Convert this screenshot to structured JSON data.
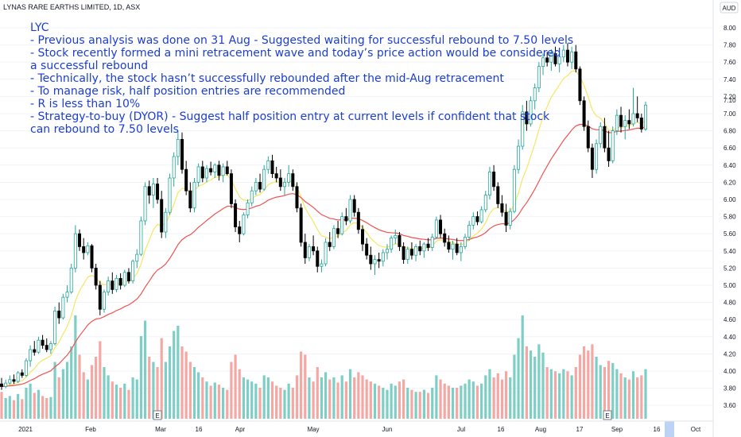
{
  "header": {
    "symbol_title": "LYNAS RARE EARTHS LIMITED, 1D, ASX",
    "currency": "AUD"
  },
  "annotation": [
    "LYC",
    "- Previous analysis was done on 31 Aug - Suggested waiting for successful rebound to 7.50 levels",
    "- Stock recently formed a mini retracement wave and today’s price action would be considered",
    "a successful rebound",
    "- Technically, the stock hasn’t successfully rebounded after the mid-Aug retracement",
    "- To manage risk, half position entries are recommended",
    "- R is less than 10%",
    "- Strategy-to-buy (DYOR) - Suggest half position entry at current levels if confident that stock",
    "can rebound to 7.50 levels"
  ],
  "chart_data": {
    "type": "candlestick",
    "title": "LYNAS RARE EARTHS LIMITED, 1D, ASX",
    "ylabel": "AUD",
    "ylim": [
      3.4,
      8.1
    ],
    "y_ticks": [
      "3.60",
      "3.80",
      "4.00",
      "4.20",
      "4.40",
      "4.60",
      "4.80",
      "5.00",
      "5.20",
      "5.40",
      "5.60",
      "5.80",
      "6.00",
      "6.20",
      "6.40",
      "6.60",
      "6.80",
      "7.00",
      "7.20",
      "7.40",
      "7.60",
      "7.80",
      "8.00"
    ],
    "x_tick_labels": [
      "2021",
      "Feb",
      "Mar",
      "16",
      "Apr",
      "May",
      "Jun",
      "Jul",
      "16",
      "Aug",
      "17",
      "Sep",
      "16",
      "Oct"
    ],
    "current_price_label": "7.10",
    "event_markers": [
      "E",
      "E"
    ],
    "colors": {
      "up": "#26a69a",
      "down": "#000000",
      "up_volume": "#7dcfc6",
      "down_volume": "#f4a7a3",
      "ma_fast": "#f5e663",
      "ma_slow": "#ef5350",
      "annotation_text": "#1a3dd6",
      "future_highlight": "#bcd3f5"
    },
    "candles": [
      {
        "o": 3.85,
        "h": 3.92,
        "l": 3.78,
        "c": 3.82,
        "v": 0.26
      },
      {
        "o": 3.82,
        "h": 3.9,
        "l": 3.8,
        "c": 3.86,
        "v": 0.2
      },
      {
        "o": 3.86,
        "h": 3.95,
        "l": 3.84,
        "c": 3.9,
        "v": 0.22
      },
      {
        "o": 3.9,
        "h": 3.96,
        "l": 3.85,
        "c": 3.88,
        "v": 0.18
      },
      {
        "o": 3.88,
        "h": 4.0,
        "l": 3.86,
        "c": 3.98,
        "v": 0.24
      },
      {
        "o": 3.98,
        "h": 4.02,
        "l": 3.92,
        "c": 3.95,
        "v": 0.19
      },
      {
        "o": 3.95,
        "h": 4.15,
        "l": 3.93,
        "c": 4.12,
        "v": 0.3
      },
      {
        "o": 4.12,
        "h": 4.3,
        "l": 4.05,
        "c": 4.25,
        "v": 0.34
      },
      {
        "o": 4.25,
        "h": 4.35,
        "l": 4.18,
        "c": 4.22,
        "v": 0.25
      },
      {
        "o": 4.22,
        "h": 4.4,
        "l": 4.2,
        "c": 4.36,
        "v": 0.28
      },
      {
        "o": 4.36,
        "h": 4.42,
        "l": 4.26,
        "c": 4.3,
        "v": 0.22
      },
      {
        "o": 4.3,
        "h": 4.38,
        "l": 4.22,
        "c": 4.25,
        "v": 0.2
      },
      {
        "o": 4.25,
        "h": 4.35,
        "l": 4.2,
        "c": 4.32,
        "v": 0.21
      },
      {
        "o": 4.32,
        "h": 4.75,
        "l": 4.3,
        "c": 4.7,
        "v": 0.55
      },
      {
        "o": 4.7,
        "h": 4.8,
        "l": 4.55,
        "c": 4.62,
        "v": 0.4
      },
      {
        "o": 4.62,
        "h": 4.9,
        "l": 4.6,
        "c": 4.86,
        "v": 0.48
      },
      {
        "o": 4.86,
        "h": 5.0,
        "l": 4.8,
        "c": 4.92,
        "v": 0.55
      },
      {
        "o": 4.92,
        "h": 5.25,
        "l": 4.9,
        "c": 5.2,
        "v": 0.7
      },
      {
        "o": 5.2,
        "h": 5.7,
        "l": 5.15,
        "c": 5.6,
        "v": 1.0
      },
      {
        "o": 5.6,
        "h": 5.65,
        "l": 5.4,
        "c": 5.45,
        "v": 0.62
      },
      {
        "o": 5.45,
        "h": 5.55,
        "l": 5.3,
        "c": 5.38,
        "v": 0.45
      },
      {
        "o": 5.38,
        "h": 5.5,
        "l": 5.35,
        "c": 5.46,
        "v": 0.38
      },
      {
        "o": 5.46,
        "h": 5.48,
        "l": 5.15,
        "c": 5.2,
        "v": 0.52
      },
      {
        "o": 5.2,
        "h": 5.25,
        "l": 4.95,
        "c": 5.0,
        "v": 0.6
      },
      {
        "o": 5.0,
        "h": 5.05,
        "l": 4.65,
        "c": 4.72,
        "v": 0.75
      },
      {
        "o": 4.72,
        "h": 4.95,
        "l": 4.68,
        "c": 4.92,
        "v": 0.5
      },
      {
        "o": 4.92,
        "h": 5.1,
        "l": 4.88,
        "c": 5.05,
        "v": 0.42
      },
      {
        "o": 5.05,
        "h": 5.15,
        "l": 4.9,
        "c": 4.95,
        "v": 0.36
      },
      {
        "o": 4.95,
        "h": 5.12,
        "l": 4.92,
        "c": 5.08,
        "v": 0.33
      },
      {
        "o": 5.08,
        "h": 5.14,
        "l": 4.95,
        "c": 5.0,
        "v": 0.3
      },
      {
        "o": 5.0,
        "h": 5.18,
        "l": 4.98,
        "c": 5.15,
        "v": 0.34
      },
      {
        "o": 5.15,
        "h": 5.2,
        "l": 5.02,
        "c": 5.05,
        "v": 0.28
      },
      {
        "o": 5.05,
        "h": 5.3,
        "l": 5.02,
        "c": 5.28,
        "v": 0.4
      },
      {
        "o": 5.28,
        "h": 5.42,
        "l": 5.2,
        "c": 5.36,
        "v": 0.38
      },
      {
        "o": 5.36,
        "h": 5.8,
        "l": 5.34,
        "c": 5.75,
        "v": 0.8
      },
      {
        "o": 5.75,
        "h": 6.2,
        "l": 5.7,
        "c": 6.15,
        "v": 0.95
      },
      {
        "o": 6.15,
        "h": 6.22,
        "l": 5.95,
        "c": 6.05,
        "v": 0.6
      },
      {
        "o": 6.05,
        "h": 6.25,
        "l": 5.9,
        "c": 6.18,
        "v": 0.55
      },
      {
        "o": 6.18,
        "h": 6.25,
        "l": 5.95,
        "c": 6.0,
        "v": 0.5
      },
      {
        "o": 6.0,
        "h": 6.1,
        "l": 5.55,
        "c": 5.62,
        "v": 0.78
      },
      {
        "o": 5.62,
        "h": 5.9,
        "l": 5.55,
        "c": 5.85,
        "v": 0.55
      },
      {
        "o": 5.85,
        "h": 6.3,
        "l": 5.82,
        "c": 6.25,
        "v": 0.7
      },
      {
        "o": 6.25,
        "h": 6.55,
        "l": 6.15,
        "c": 6.5,
        "v": 0.85
      },
      {
        "o": 6.5,
        "h": 6.8,
        "l": 6.4,
        "c": 6.7,
        "v": 0.9
      },
      {
        "o": 6.7,
        "h": 6.78,
        "l": 6.3,
        "c": 6.35,
        "v": 0.7
      },
      {
        "o": 6.35,
        "h": 6.45,
        "l": 6.05,
        "c": 6.1,
        "v": 0.65
      },
      {
        "o": 6.1,
        "h": 6.2,
        "l": 5.85,
        "c": 5.9,
        "v": 0.55
      },
      {
        "o": 5.9,
        "h": 6.25,
        "l": 5.85,
        "c": 6.2,
        "v": 0.5
      },
      {
        "o": 6.2,
        "h": 6.42,
        "l": 6.15,
        "c": 6.38,
        "v": 0.45
      },
      {
        "o": 6.38,
        "h": 6.45,
        "l": 6.2,
        "c": 6.25,
        "v": 0.4
      },
      {
        "o": 6.25,
        "h": 6.4,
        "l": 6.2,
        "c": 6.36,
        "v": 0.36
      },
      {
        "o": 6.36,
        "h": 6.44,
        "l": 6.28,
        "c": 6.32,
        "v": 0.32
      },
      {
        "o": 6.32,
        "h": 6.42,
        "l": 6.25,
        "c": 6.4,
        "v": 0.35
      },
      {
        "o": 6.4,
        "h": 6.45,
        "l": 6.22,
        "c": 6.28,
        "v": 0.33
      },
      {
        "o": 6.28,
        "h": 6.42,
        "l": 6.2,
        "c": 6.38,
        "v": 0.3
      },
      {
        "o": 6.38,
        "h": 6.45,
        "l": 6.28,
        "c": 6.3,
        "v": 0.28
      },
      {
        "o": 6.3,
        "h": 6.35,
        "l": 5.9,
        "c": 5.95,
        "v": 0.55
      },
      {
        "o": 5.95,
        "h": 6.0,
        "l": 5.62,
        "c": 5.68,
        "v": 0.62
      },
      {
        "o": 5.68,
        "h": 5.75,
        "l": 5.5,
        "c": 5.6,
        "v": 0.48
      },
      {
        "o": 5.6,
        "h": 5.85,
        "l": 5.58,
        "c": 5.82,
        "v": 0.4
      },
      {
        "o": 5.82,
        "h": 6.0,
        "l": 5.78,
        "c": 5.96,
        "v": 0.38
      },
      {
        "o": 5.96,
        "h": 6.15,
        "l": 5.92,
        "c": 6.1,
        "v": 0.36
      },
      {
        "o": 6.1,
        "h": 6.25,
        "l": 6.05,
        "c": 6.2,
        "v": 0.34
      },
      {
        "o": 6.2,
        "h": 6.3,
        "l": 6.08,
        "c": 6.12,
        "v": 0.3
      },
      {
        "o": 6.12,
        "h": 6.4,
        "l": 6.1,
        "c": 6.35,
        "v": 0.42
      },
      {
        "o": 6.35,
        "h": 6.5,
        "l": 6.3,
        "c": 6.45,
        "v": 0.4
      },
      {
        "o": 6.45,
        "h": 6.52,
        "l": 6.25,
        "c": 6.3,
        "v": 0.36
      },
      {
        "o": 6.3,
        "h": 6.38,
        "l": 6.2,
        "c": 6.25,
        "v": 0.32
      },
      {
        "o": 6.25,
        "h": 6.35,
        "l": 6.1,
        "c": 6.15,
        "v": 0.3
      },
      {
        "o": 6.15,
        "h": 6.25,
        "l": 6.05,
        "c": 6.2,
        "v": 0.28
      },
      {
        "o": 6.2,
        "h": 6.4,
        "l": 6.15,
        "c": 6.3,
        "v": 0.34
      },
      {
        "o": 6.3,
        "h": 6.35,
        "l": 6.1,
        "c": 6.15,
        "v": 0.3
      },
      {
        "o": 6.15,
        "h": 6.2,
        "l": 5.85,
        "c": 5.9,
        "v": 0.42
      },
      {
        "o": 5.9,
        "h": 5.95,
        "l": 5.45,
        "c": 5.5,
        "v": 0.65
      },
      {
        "o": 5.5,
        "h": 5.6,
        "l": 5.25,
        "c": 5.32,
        "v": 0.62
      },
      {
        "o": 5.32,
        "h": 5.48,
        "l": 5.28,
        "c": 5.45,
        "v": 0.4
      },
      {
        "o": 5.45,
        "h": 5.58,
        "l": 5.35,
        "c": 5.4,
        "v": 0.36
      },
      {
        "o": 5.4,
        "h": 5.45,
        "l": 5.15,
        "c": 5.22,
        "v": 0.5
      },
      {
        "o": 5.22,
        "h": 5.3,
        "l": 5.15,
        "c": 5.25,
        "v": 0.4
      },
      {
        "o": 5.25,
        "h": 5.55,
        "l": 5.22,
        "c": 5.5,
        "v": 0.45
      },
      {
        "o": 5.5,
        "h": 5.62,
        "l": 5.4,
        "c": 5.45,
        "v": 0.38
      },
      {
        "o": 5.45,
        "h": 5.7,
        "l": 5.42,
        "c": 5.66,
        "v": 0.4
      },
      {
        "o": 5.66,
        "h": 5.75,
        "l": 5.55,
        "c": 5.6,
        "v": 0.35
      },
      {
        "o": 5.6,
        "h": 5.85,
        "l": 5.58,
        "c": 5.8,
        "v": 0.42
      },
      {
        "o": 5.8,
        "h": 5.9,
        "l": 5.7,
        "c": 5.75,
        "v": 0.36
      },
      {
        "o": 5.75,
        "h": 6.05,
        "l": 5.72,
        "c": 6.0,
        "v": 0.48
      },
      {
        "o": 6.0,
        "h": 6.05,
        "l": 5.8,
        "c": 5.85,
        "v": 0.4
      },
      {
        "o": 5.85,
        "h": 5.9,
        "l": 5.6,
        "c": 5.65,
        "v": 0.45
      },
      {
        "o": 5.65,
        "h": 5.7,
        "l": 5.4,
        "c": 5.48,
        "v": 0.42
      },
      {
        "o": 5.48,
        "h": 5.55,
        "l": 5.3,
        "c": 5.35,
        "v": 0.38
      },
      {
        "o": 5.35,
        "h": 5.45,
        "l": 5.18,
        "c": 5.25,
        "v": 0.36
      },
      {
        "o": 5.25,
        "h": 5.35,
        "l": 5.12,
        "c": 5.3,
        "v": 0.34
      },
      {
        "o": 5.3,
        "h": 5.38,
        "l": 5.2,
        "c": 5.28,
        "v": 0.32
      },
      {
        "o": 5.28,
        "h": 5.42,
        "l": 5.22,
        "c": 5.38,
        "v": 0.3
      },
      {
        "o": 5.38,
        "h": 5.48,
        "l": 5.3,
        "c": 5.42,
        "v": 0.28
      },
      {
        "o": 5.42,
        "h": 5.58,
        "l": 5.38,
        "c": 5.55,
        "v": 0.34
      },
      {
        "o": 5.55,
        "h": 5.65,
        "l": 5.48,
        "c": 5.58,
        "v": 0.32
      },
      {
        "o": 5.58,
        "h": 5.62,
        "l": 5.4,
        "c": 5.45,
        "v": 0.36
      },
      {
        "o": 5.45,
        "h": 5.5,
        "l": 5.25,
        "c": 5.3,
        "v": 0.38
      },
      {
        "o": 5.3,
        "h": 5.45,
        "l": 5.25,
        "c": 5.42,
        "v": 0.3
      },
      {
        "o": 5.42,
        "h": 5.5,
        "l": 5.3,
        "c": 5.35,
        "v": 0.28
      },
      {
        "o": 5.35,
        "h": 5.48,
        "l": 5.28,
        "c": 5.45,
        "v": 0.26
      },
      {
        "o": 5.45,
        "h": 5.52,
        "l": 5.35,
        "c": 5.4,
        "v": 0.26
      },
      {
        "o": 5.4,
        "h": 5.5,
        "l": 5.32,
        "c": 5.48,
        "v": 0.28
      },
      {
        "o": 5.48,
        "h": 5.55,
        "l": 5.4,
        "c": 5.44,
        "v": 0.25
      },
      {
        "o": 5.44,
        "h": 5.6,
        "l": 5.4,
        "c": 5.56,
        "v": 0.3
      },
      {
        "o": 5.56,
        "h": 5.8,
        "l": 5.54,
        "c": 5.76,
        "v": 0.42
      },
      {
        "o": 5.76,
        "h": 5.82,
        "l": 5.55,
        "c": 5.6,
        "v": 0.38
      },
      {
        "o": 5.6,
        "h": 5.66,
        "l": 5.45,
        "c": 5.5,
        "v": 0.34
      },
      {
        "o": 5.5,
        "h": 5.58,
        "l": 5.38,
        "c": 5.42,
        "v": 0.32
      },
      {
        "o": 5.42,
        "h": 5.52,
        "l": 5.3,
        "c": 5.48,
        "v": 0.3
      },
      {
        "o": 5.48,
        "h": 5.55,
        "l": 5.35,
        "c": 5.38,
        "v": 0.3
      },
      {
        "o": 5.38,
        "h": 5.5,
        "l": 5.28,
        "c": 5.45,
        "v": 0.32
      },
      {
        "o": 5.45,
        "h": 5.6,
        "l": 5.42,
        "c": 5.56,
        "v": 0.34
      },
      {
        "o": 5.56,
        "h": 5.75,
        "l": 5.52,
        "c": 5.7,
        "v": 0.38
      },
      {
        "o": 5.7,
        "h": 5.85,
        "l": 5.65,
        "c": 5.8,
        "v": 0.36
      },
      {
        "o": 5.8,
        "h": 5.86,
        "l": 5.7,
        "c": 5.74,
        "v": 0.32
      },
      {
        "o": 5.74,
        "h": 5.92,
        "l": 5.72,
        "c": 5.88,
        "v": 0.34
      },
      {
        "o": 5.88,
        "h": 6.1,
        "l": 5.85,
        "c": 6.05,
        "v": 0.42
      },
      {
        "o": 6.05,
        "h": 6.38,
        "l": 6.0,
        "c": 6.32,
        "v": 0.48
      },
      {
        "o": 6.32,
        "h": 6.4,
        "l": 6.1,
        "c": 6.15,
        "v": 0.4
      },
      {
        "o": 6.15,
        "h": 6.2,
        "l": 5.9,
        "c": 5.95,
        "v": 0.44
      },
      {
        "o": 5.95,
        "h": 6.05,
        "l": 5.8,
        "c": 5.85,
        "v": 0.38
      },
      {
        "o": 5.85,
        "h": 5.95,
        "l": 5.62,
        "c": 5.7,
        "v": 0.46
      },
      {
        "o": 5.7,
        "h": 5.9,
        "l": 5.65,
        "c": 5.86,
        "v": 0.4
      },
      {
        "o": 5.86,
        "h": 6.4,
        "l": 5.84,
        "c": 6.35,
        "v": 0.62
      },
      {
        "o": 6.35,
        "h": 6.7,
        "l": 6.3,
        "c": 6.62,
        "v": 0.78
      },
      {
        "o": 6.62,
        "h": 7.1,
        "l": 6.58,
        "c": 7.02,
        "v": 1.0
      },
      {
        "o": 7.02,
        "h": 7.15,
        "l": 6.8,
        "c": 6.88,
        "v": 0.7
      },
      {
        "o": 6.88,
        "h": 7.2,
        "l": 6.85,
        "c": 7.15,
        "v": 0.66
      },
      {
        "o": 7.15,
        "h": 7.35,
        "l": 7.05,
        "c": 7.3,
        "v": 0.6
      },
      {
        "o": 7.3,
        "h": 7.6,
        "l": 7.25,
        "c": 7.55,
        "v": 0.72
      },
      {
        "o": 7.55,
        "h": 7.7,
        "l": 7.45,
        "c": 7.65,
        "v": 0.64
      },
      {
        "o": 7.65,
        "h": 7.72,
        "l": 7.55,
        "c": 7.6,
        "v": 0.5
      },
      {
        "o": 7.6,
        "h": 7.75,
        "l": 7.5,
        "c": 7.7,
        "v": 0.48
      },
      {
        "o": 7.7,
        "h": 7.78,
        "l": 7.55,
        "c": 7.58,
        "v": 0.46
      },
      {
        "o": 7.58,
        "h": 7.7,
        "l": 7.48,
        "c": 7.66,
        "v": 0.44
      },
      {
        "o": 7.66,
        "h": 7.8,
        "l": 7.6,
        "c": 7.74,
        "v": 0.48
      },
      {
        "o": 7.74,
        "h": 7.82,
        "l": 7.55,
        "c": 7.6,
        "v": 0.46
      },
      {
        "o": 7.6,
        "h": 7.78,
        "l": 7.52,
        "c": 7.72,
        "v": 0.42
      },
      {
        "o": 7.72,
        "h": 7.8,
        "l": 7.48,
        "c": 7.52,
        "v": 0.5
      },
      {
        "o": 7.52,
        "h": 7.55,
        "l": 7.1,
        "c": 7.15,
        "v": 0.62
      },
      {
        "o": 7.15,
        "h": 7.2,
        "l": 6.8,
        "c": 6.85,
        "v": 0.7
      },
      {
        "o": 6.85,
        "h": 6.92,
        "l": 6.55,
        "c": 6.6,
        "v": 0.66
      },
      {
        "o": 6.6,
        "h": 6.65,
        "l": 6.25,
        "c": 6.35,
        "v": 0.72
      },
      {
        "o": 6.35,
        "h": 6.7,
        "l": 6.3,
        "c": 6.65,
        "v": 0.6
      },
      {
        "o": 6.65,
        "h": 6.9,
        "l": 6.6,
        "c": 6.85,
        "v": 0.52
      },
      {
        "o": 6.85,
        "h": 6.95,
        "l": 6.55,
        "c": 6.6,
        "v": 0.5
      },
      {
        "o": 6.6,
        "h": 6.8,
        "l": 6.38,
        "c": 6.45,
        "v": 0.56
      },
      {
        "o": 6.45,
        "h": 6.85,
        "l": 6.42,
        "c": 6.8,
        "v": 0.54
      },
      {
        "o": 6.8,
        "h": 7.05,
        "l": 6.75,
        "c": 6.98,
        "v": 0.48
      },
      {
        "o": 6.98,
        "h": 7.08,
        "l": 6.78,
        "c": 6.85,
        "v": 0.44
      },
      {
        "o": 6.85,
        "h": 6.98,
        "l": 6.7,
        "c": 6.92,
        "v": 0.4
      },
      {
        "o": 6.92,
        "h": 7.05,
        "l": 6.82,
        "c": 6.88,
        "v": 0.38
      },
      {
        "o": 6.88,
        "h": 7.3,
        "l": 6.85,
        "c": 7.0,
        "v": 0.46
      },
      {
        "o": 7.0,
        "h": 7.2,
        "l": 6.9,
        "c": 6.95,
        "v": 0.4
      },
      {
        "o": 6.95,
        "h": 7.0,
        "l": 6.78,
        "c": 6.82,
        "v": 0.42
      },
      {
        "o": 6.82,
        "h": 7.14,
        "l": 6.8,
        "c": 7.1,
        "v": 0.48
      }
    ]
  }
}
